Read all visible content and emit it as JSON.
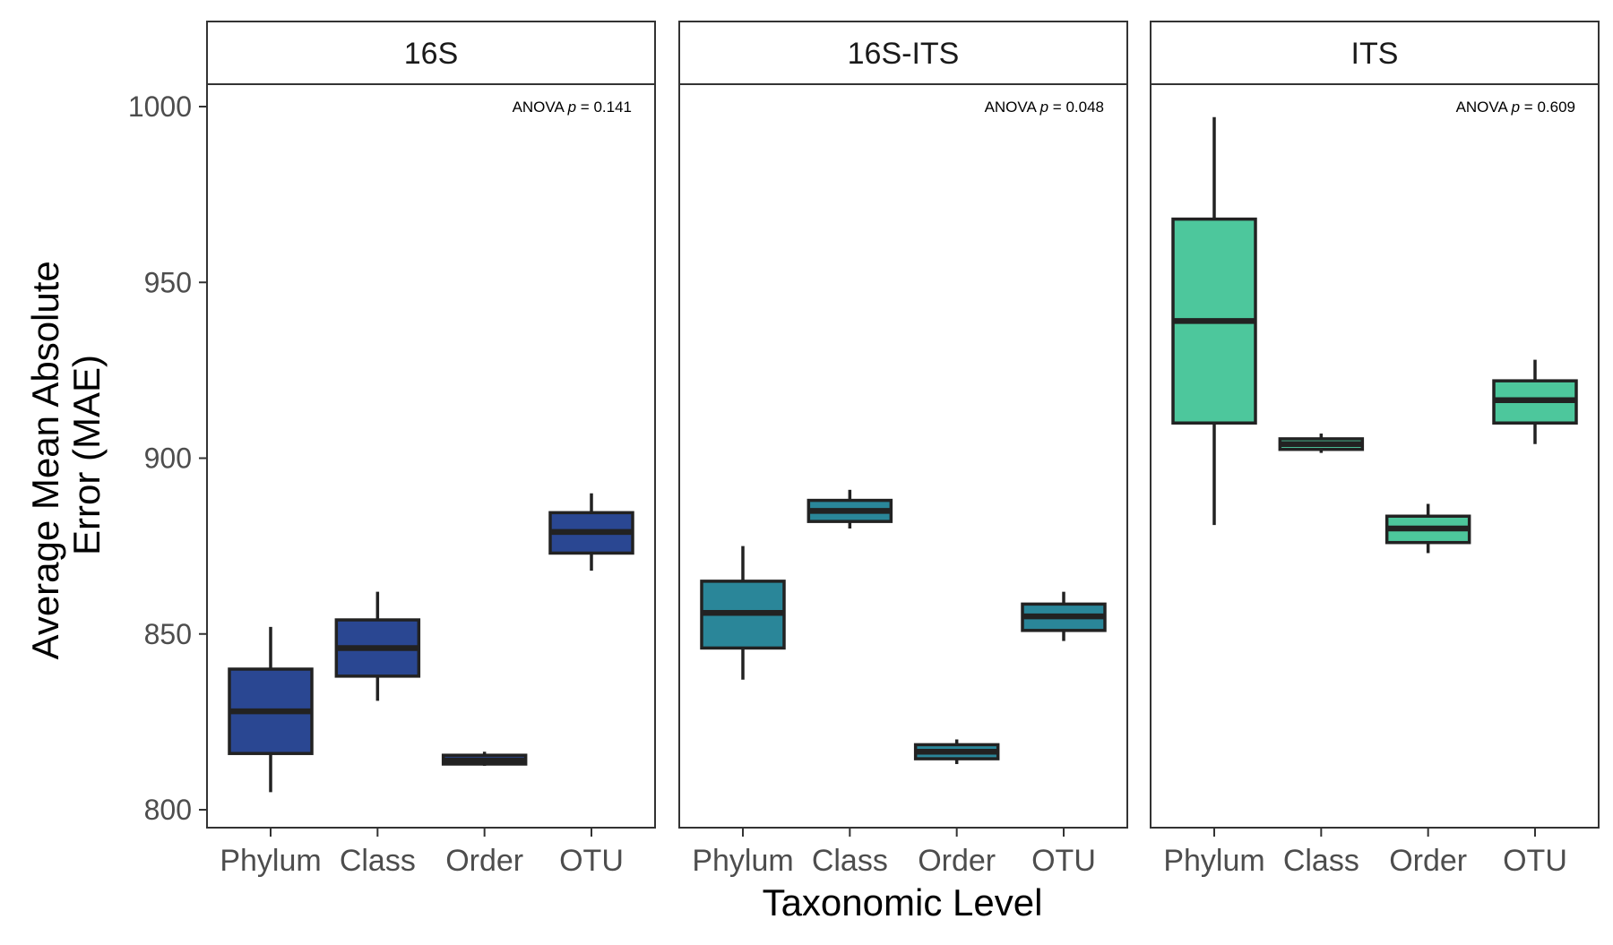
{
  "chart_data": {
    "type": "box",
    "xlabel": "Taxonomic Level",
    "ylabel_line1": "Average Mean Absolute",
    "ylabel_line2": "Error (MAE)",
    "ylim": [
      795,
      1023
    ],
    "yticks": [
      800,
      850,
      900,
      950,
      1000
    ],
    "categories": [
      "Phylum",
      "Class",
      "Order",
      "OTU"
    ],
    "panels": [
      {
        "name": "16S",
        "color": "#2a4792",
        "annotation": {
          "prefix": "ANOVA ",
          "p_symbol": "p",
          "suffix": " = 0.141"
        },
        "boxes": [
          {
            "category": "Phylum",
            "min": 805,
            "q1": 816,
            "median": 828,
            "q3": 840,
            "max": 852
          },
          {
            "category": "Class",
            "min": 831,
            "q1": 838,
            "median": 846,
            "q3": 854,
            "max": 862
          },
          {
            "category": "Order",
            "min": 812.5,
            "q1": 813,
            "median": 814,
            "q3": 815.5,
            "max": 816.5
          },
          {
            "category": "OTU",
            "min": 868,
            "q1": 873,
            "median": 879,
            "q3": 884.5,
            "max": 890
          }
        ]
      },
      {
        "name": "16S-ITS",
        "color": "#2a8699",
        "annotation": {
          "prefix": "ANOVA ",
          "p_symbol": "p",
          "suffix": " = 0.048"
        },
        "boxes": [
          {
            "category": "Phylum",
            "min": 837,
            "q1": 846,
            "median": 856,
            "q3": 865,
            "max": 875
          },
          {
            "category": "Class",
            "min": 880,
            "q1": 882,
            "median": 885,
            "q3": 888,
            "max": 891
          },
          {
            "category": "Order",
            "min": 813,
            "q1": 814.5,
            "median": 816.5,
            "q3": 818.5,
            "max": 820
          },
          {
            "category": "OTU",
            "min": 848,
            "q1": 851,
            "median": 855,
            "q3": 858.5,
            "max": 862
          }
        ]
      },
      {
        "name": "ITS",
        "color": "#4dc79c",
        "annotation": {
          "prefix": "ANOVA ",
          "p_symbol": "p",
          "suffix": " = 0.609"
        },
        "boxes": [
          {
            "category": "Phylum",
            "min": 881,
            "q1": 910,
            "median": 939,
            "q3": 968,
            "max": 997
          },
          {
            "category": "Class",
            "min": 901.5,
            "q1": 902.5,
            "median": 904,
            "q3": 905.5,
            "max": 907
          },
          {
            "category": "Order",
            "min": 873,
            "q1": 876,
            "median": 880,
            "q3": 883.5,
            "max": 887
          },
          {
            "category": "OTU",
            "min": 904,
            "q1": 910,
            "median": 916.5,
            "q3": 922,
            "max": 928
          }
        ]
      }
    ]
  }
}
